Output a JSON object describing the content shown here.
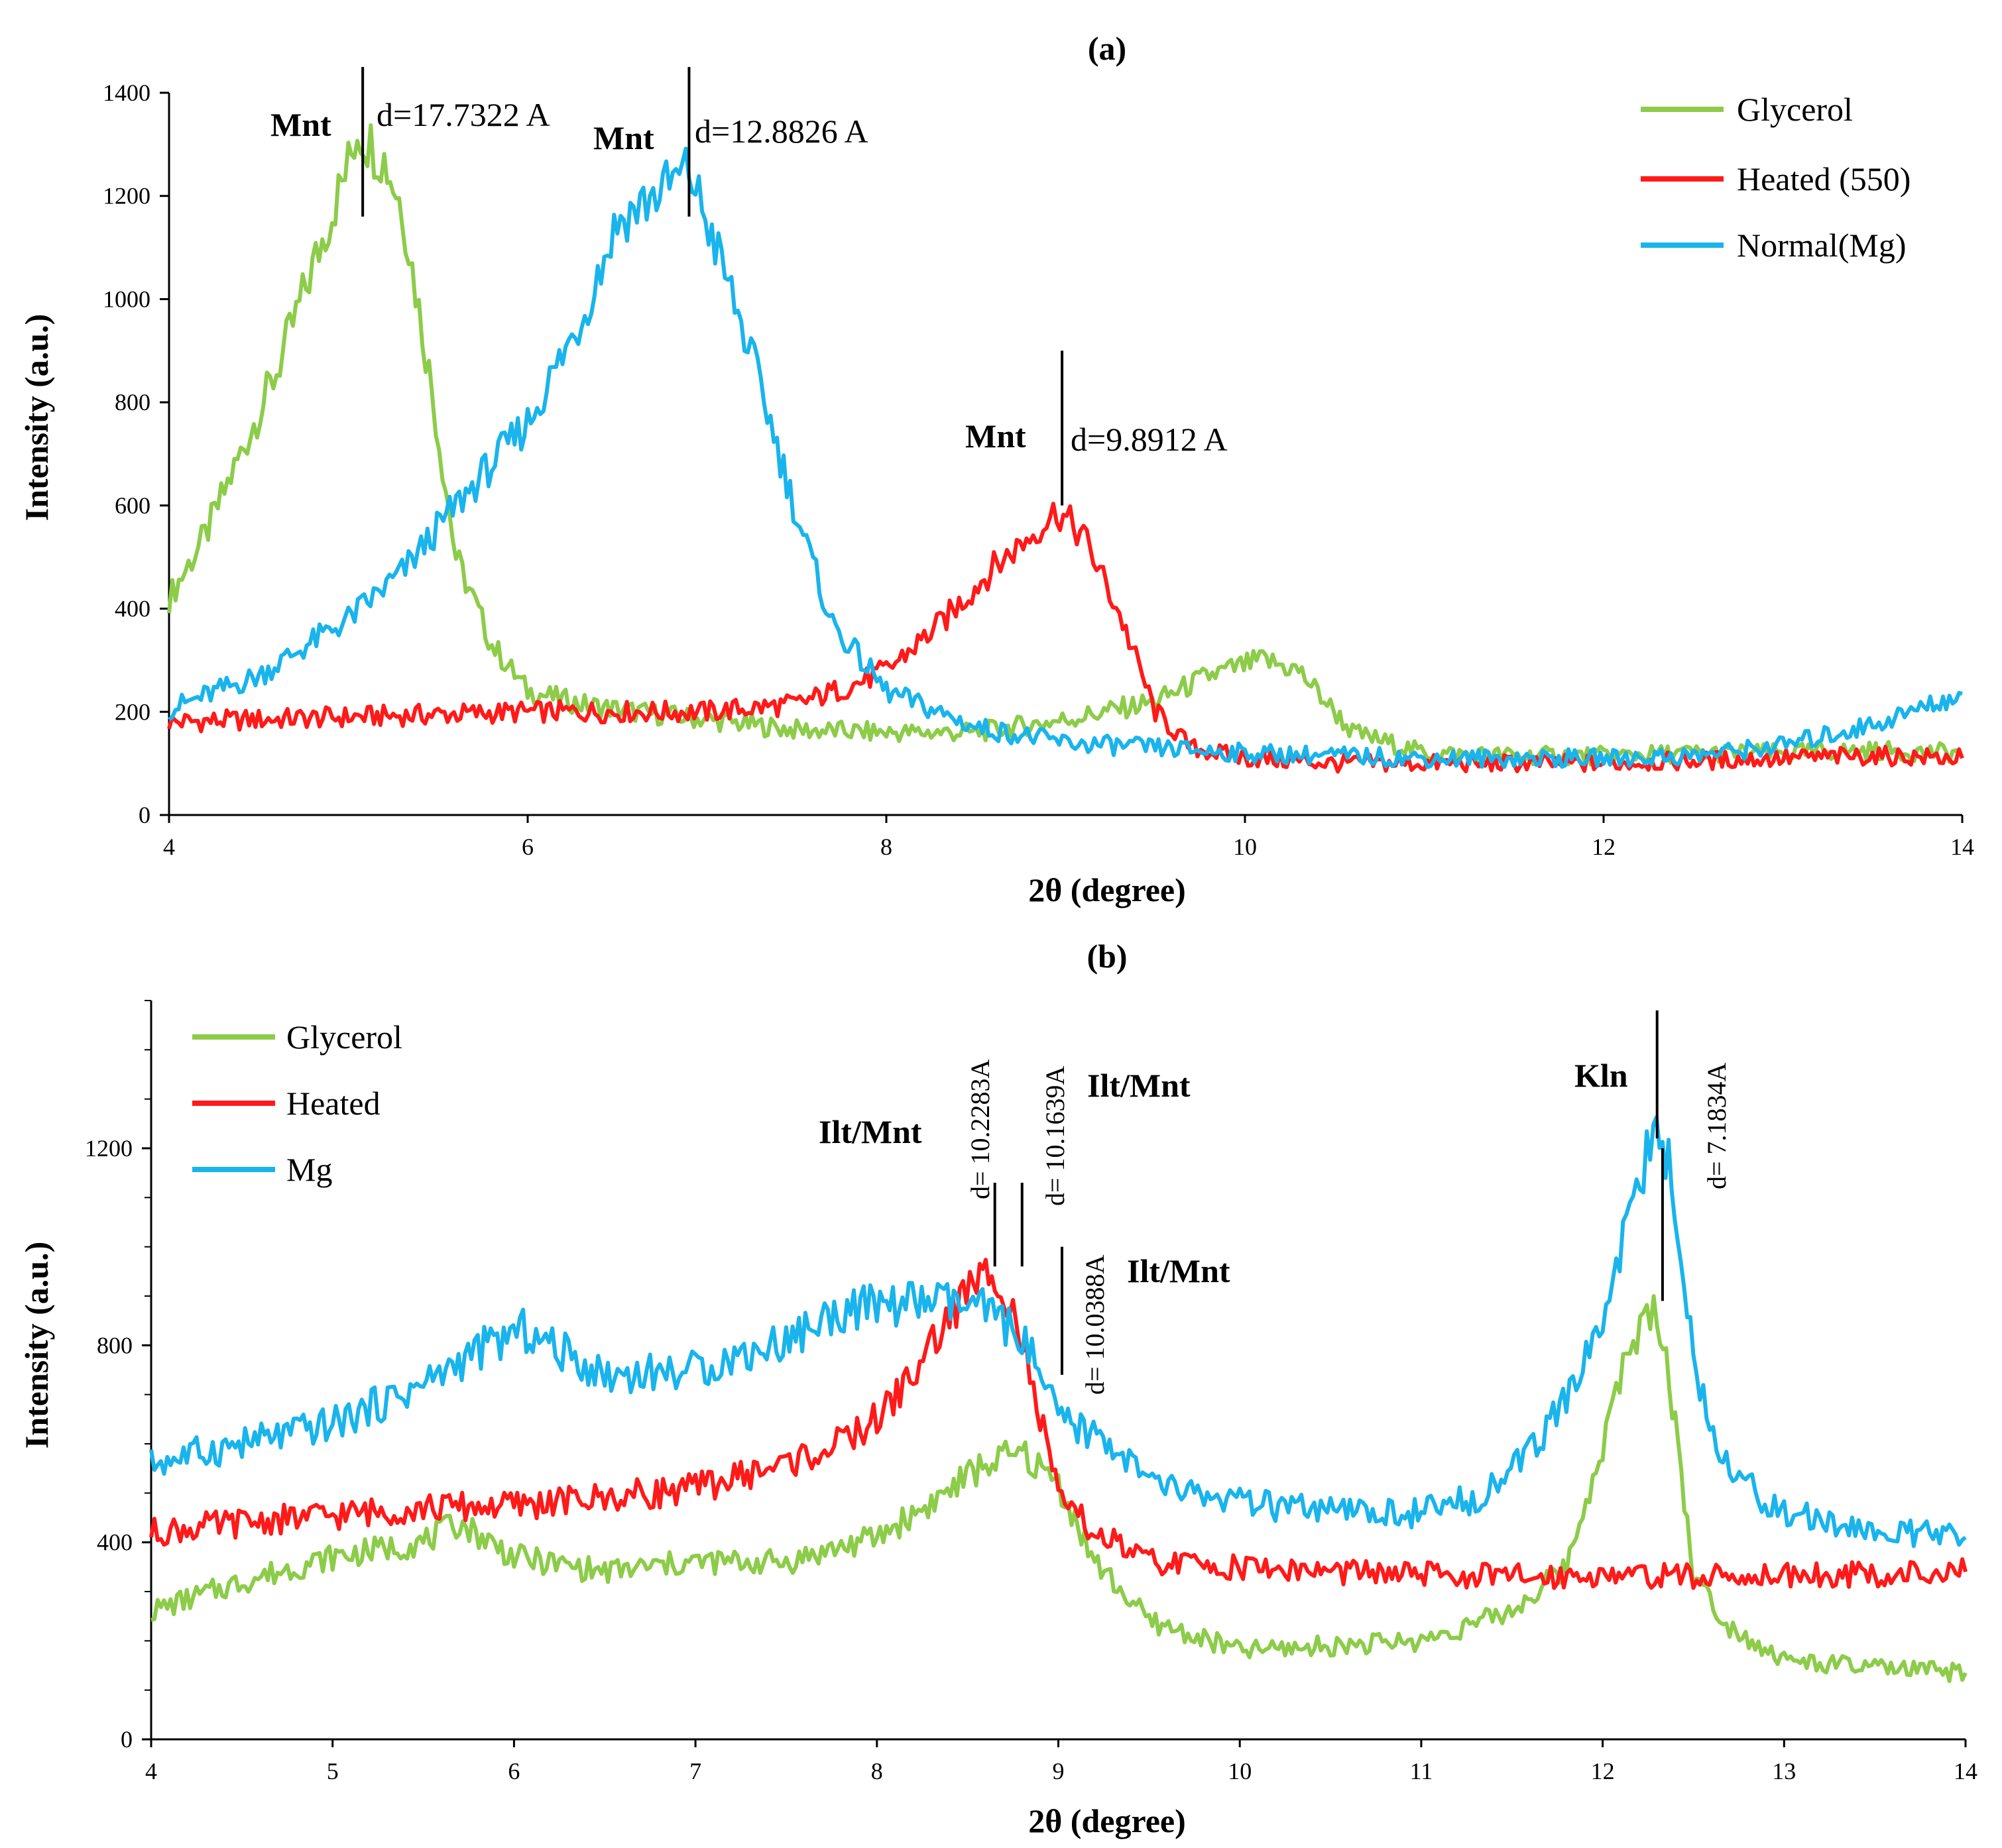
{
  "colors": {
    "glycerol": "#8ccc49",
    "heated": "#ff1a1a",
    "mg": "#19b4ec",
    "axis": "#000000"
  },
  "chart_data": [
    {
      "panel": "(a)",
      "type": "line",
      "title": "(a)",
      "xlabel": "2θ (degree)",
      "ylabel": "Intensity (a.u.)",
      "xlim": [
        4,
        14
      ],
      "ylim": [
        0,
        1400
      ],
      "xticks": [
        4,
        6,
        8,
        10,
        12,
        14
      ],
      "yticks": [
        0,
        200,
        400,
        600,
        800,
        1000,
        1200,
        1400
      ],
      "legend_position": "top-right",
      "series": [
        {
          "name": "Glycerol",
          "color_key": "glycerol",
          "x": [
            4.0,
            4.2,
            4.4,
            4.6,
            4.8,
            5.0,
            5.05,
            5.2,
            5.3,
            5.45,
            5.6,
            5.8,
            6.0,
            6.3,
            6.6,
            7.0,
            7.5,
            8.0,
            8.5,
            9.0,
            9.5,
            9.8,
            10.1,
            10.3,
            10.6,
            11.0,
            11.5,
            12.0,
            12.5,
            13.0,
            13.5,
            14.0
          ],
          "y": [
            420,
            540,
            700,
            860,
            1060,
            1260,
            1330,
            1270,
            1180,
            860,
            500,
            330,
            240,
            215,
            200,
            185,
            165,
            160,
            160,
            185,
            220,
            270,
            300,
            280,
            160,
            120,
            115,
            115,
            120,
            120,
            125,
            120
          ]
        },
        {
          "name": "Heated (550)",
          "color_key": "heated",
          "x": [
            4.0,
            4.5,
            5.0,
            5.5,
            6.0,
            6.5,
            7.0,
            7.5,
            7.8,
            8.0,
            8.3,
            8.6,
            8.8,
            8.95,
            9.1,
            9.3,
            9.5,
            9.7,
            10.0,
            10.5,
            11.0,
            11.5,
            12.0,
            12.5,
            13.0,
            13.5,
            14.0
          ],
          "y": [
            180,
            185,
            190,
            195,
            200,
            200,
            200,
            215,
            250,
            280,
            370,
            480,
            540,
            590,
            540,
            390,
            200,
            130,
            110,
            100,
            100,
            100,
            100,
            105,
            110,
            115,
            110
          ]
        },
        {
          "name": "Normal(Mg)",
          "color_key": "mg",
          "x": [
            4.0,
            4.5,
            5.0,
            5.3,
            5.6,
            6.0,
            6.3,
            6.5,
            6.7,
            6.9,
            7.1,
            7.3,
            7.5,
            7.7,
            8.0,
            8.5,
            9.0,
            9.5,
            10.0,
            10.5,
            11.0,
            11.5,
            12.0,
            12.5,
            13.0,
            13.5,
            14.0
          ],
          "y": [
            205,
            270,
            380,
            470,
            600,
            760,
            960,
            1150,
            1200,
            1250,
            1050,
            830,
            580,
            370,
            240,
            170,
            140,
            130,
            120,
            115,
            110,
            110,
            110,
            115,
            135,
            175,
            235
          ]
        }
      ],
      "annotations": [
        {
          "label": "Mnt",
          "d_text": "d=17.7322 A",
          "x": 5.08,
          "y_top": 1450,
          "y_bottom": 1160
        },
        {
          "label": "Mnt",
          "d_text": "d=12.8826 A",
          "x": 6.9,
          "y_top": 1450,
          "y_bottom": 1160
        },
        {
          "label": "Mnt",
          "d_text": "d=9.8912 A",
          "x": 8.98,
          "y_top": 900,
          "y_bottom": 600
        }
      ]
    },
    {
      "panel": "(b)",
      "type": "line",
      "title": "(b)",
      "xlabel": "2θ (degree)",
      "ylabel": "Intensity (a.u.)",
      "xlim": [
        4,
        14
      ],
      "ylim": [
        0,
        1500
      ],
      "xticks": [
        4,
        5,
        6,
        7,
        8,
        9,
        10,
        11,
        12,
        13,
        14
      ],
      "yticks": [
        0,
        400,
        800,
        1200
      ],
      "legend_position": "top-left",
      "series": [
        {
          "name": "Glycerol",
          "color_key": "glycerol",
          "x": [
            4.0,
            4.5,
            5.0,
            5.5,
            5.7,
            6.0,
            6.5,
            7.0,
            7.5,
            8.0,
            8.3,
            8.6,
            8.8,
            9.0,
            9.2,
            9.5,
            10.0,
            10.5,
            11.0,
            11.5,
            11.8,
            12.0,
            12.15,
            12.3,
            12.4,
            12.5,
            12.7,
            13.0,
            13.5,
            14.0
          ],
          "y": [
            260,
            320,
            370,
            400,
            440,
            370,
            340,
            360,
            360,
            410,
            480,
            560,
            580,
            520,
            360,
            240,
            180,
            190,
            200,
            260,
            350,
            600,
            800,
            880,
            650,
            330,
            230,
            160,
            145,
            135
          ]
        },
        {
          "name": "Heated",
          "color_key": "heated",
          "x": [
            4.0,
            4.5,
            5.0,
            5.5,
            6.0,
            6.5,
            7.0,
            7.5,
            7.8,
            8.0,
            8.2,
            8.4,
            8.55,
            8.65,
            8.75,
            8.9,
            9.0,
            9.2,
            9.5,
            10.0,
            10.5,
            11.0,
            11.5,
            12.0,
            12.5,
            13.0,
            13.5,
            14.0
          ],
          "y": [
            420,
            440,
            455,
            470,
            475,
            490,
            510,
            560,
            600,
            650,
            740,
            860,
            930,
            950,
            880,
            650,
            490,
            420,
            360,
            350,
            340,
            335,
            330,
            335,
            330,
            335,
            335,
            340
          ]
        },
        {
          "name": "Mg",
          "color_key": "mg",
          "x": [
            4.0,
            4.5,
            5.0,
            5.5,
            5.8,
            6.05,
            6.3,
            6.5,
            7.0,
            7.5,
            7.8,
            8.0,
            8.3,
            8.6,
            8.8,
            9.0,
            9.3,
            9.5,
            10.0,
            10.5,
            11.0,
            11.3,
            11.6,
            11.8,
            12.0,
            12.15,
            12.28,
            12.38,
            12.5,
            12.7,
            13.0,
            13.5,
            14.0
          ],
          "y": [
            560,
            600,
            640,
            720,
            790,
            830,
            780,
            740,
            750,
            810,
            870,
            880,
            890,
            870,
            820,
            650,
            600,
            520,
            480,
            460,
            460,
            490,
            580,
            690,
            850,
            1080,
            1220,
            1160,
            760,
            540,
            460,
            420,
            410
          ]
        }
      ],
      "annotations": [
        {
          "label": "Ilt/Mnt",
          "d_text": "d= 10.2283A",
          "x": 8.65,
          "y_top": 1130,
          "y_bottom": 960
        },
        {
          "label": "Ilt/Mnt",
          "d_text": "d= 10.1639A",
          "x": 8.8,
          "y_top": 1130,
          "y_bottom": 960
        },
        {
          "label": "Ilt/Mnt",
          "d_text": "d= 10.0388A",
          "x": 9.02,
          "y_top": 1000,
          "y_bottom": 740
        },
        {
          "label": "Kln",
          "d_text": "d= 7.1834A",
          "x": 12.3,
          "y_top": 1480,
          "y_bottom": 1220
        },
        {
          "label": "",
          "d_text": "",
          "x": 12.33,
          "y_top": 1200,
          "y_bottom": 890
        }
      ]
    }
  ]
}
